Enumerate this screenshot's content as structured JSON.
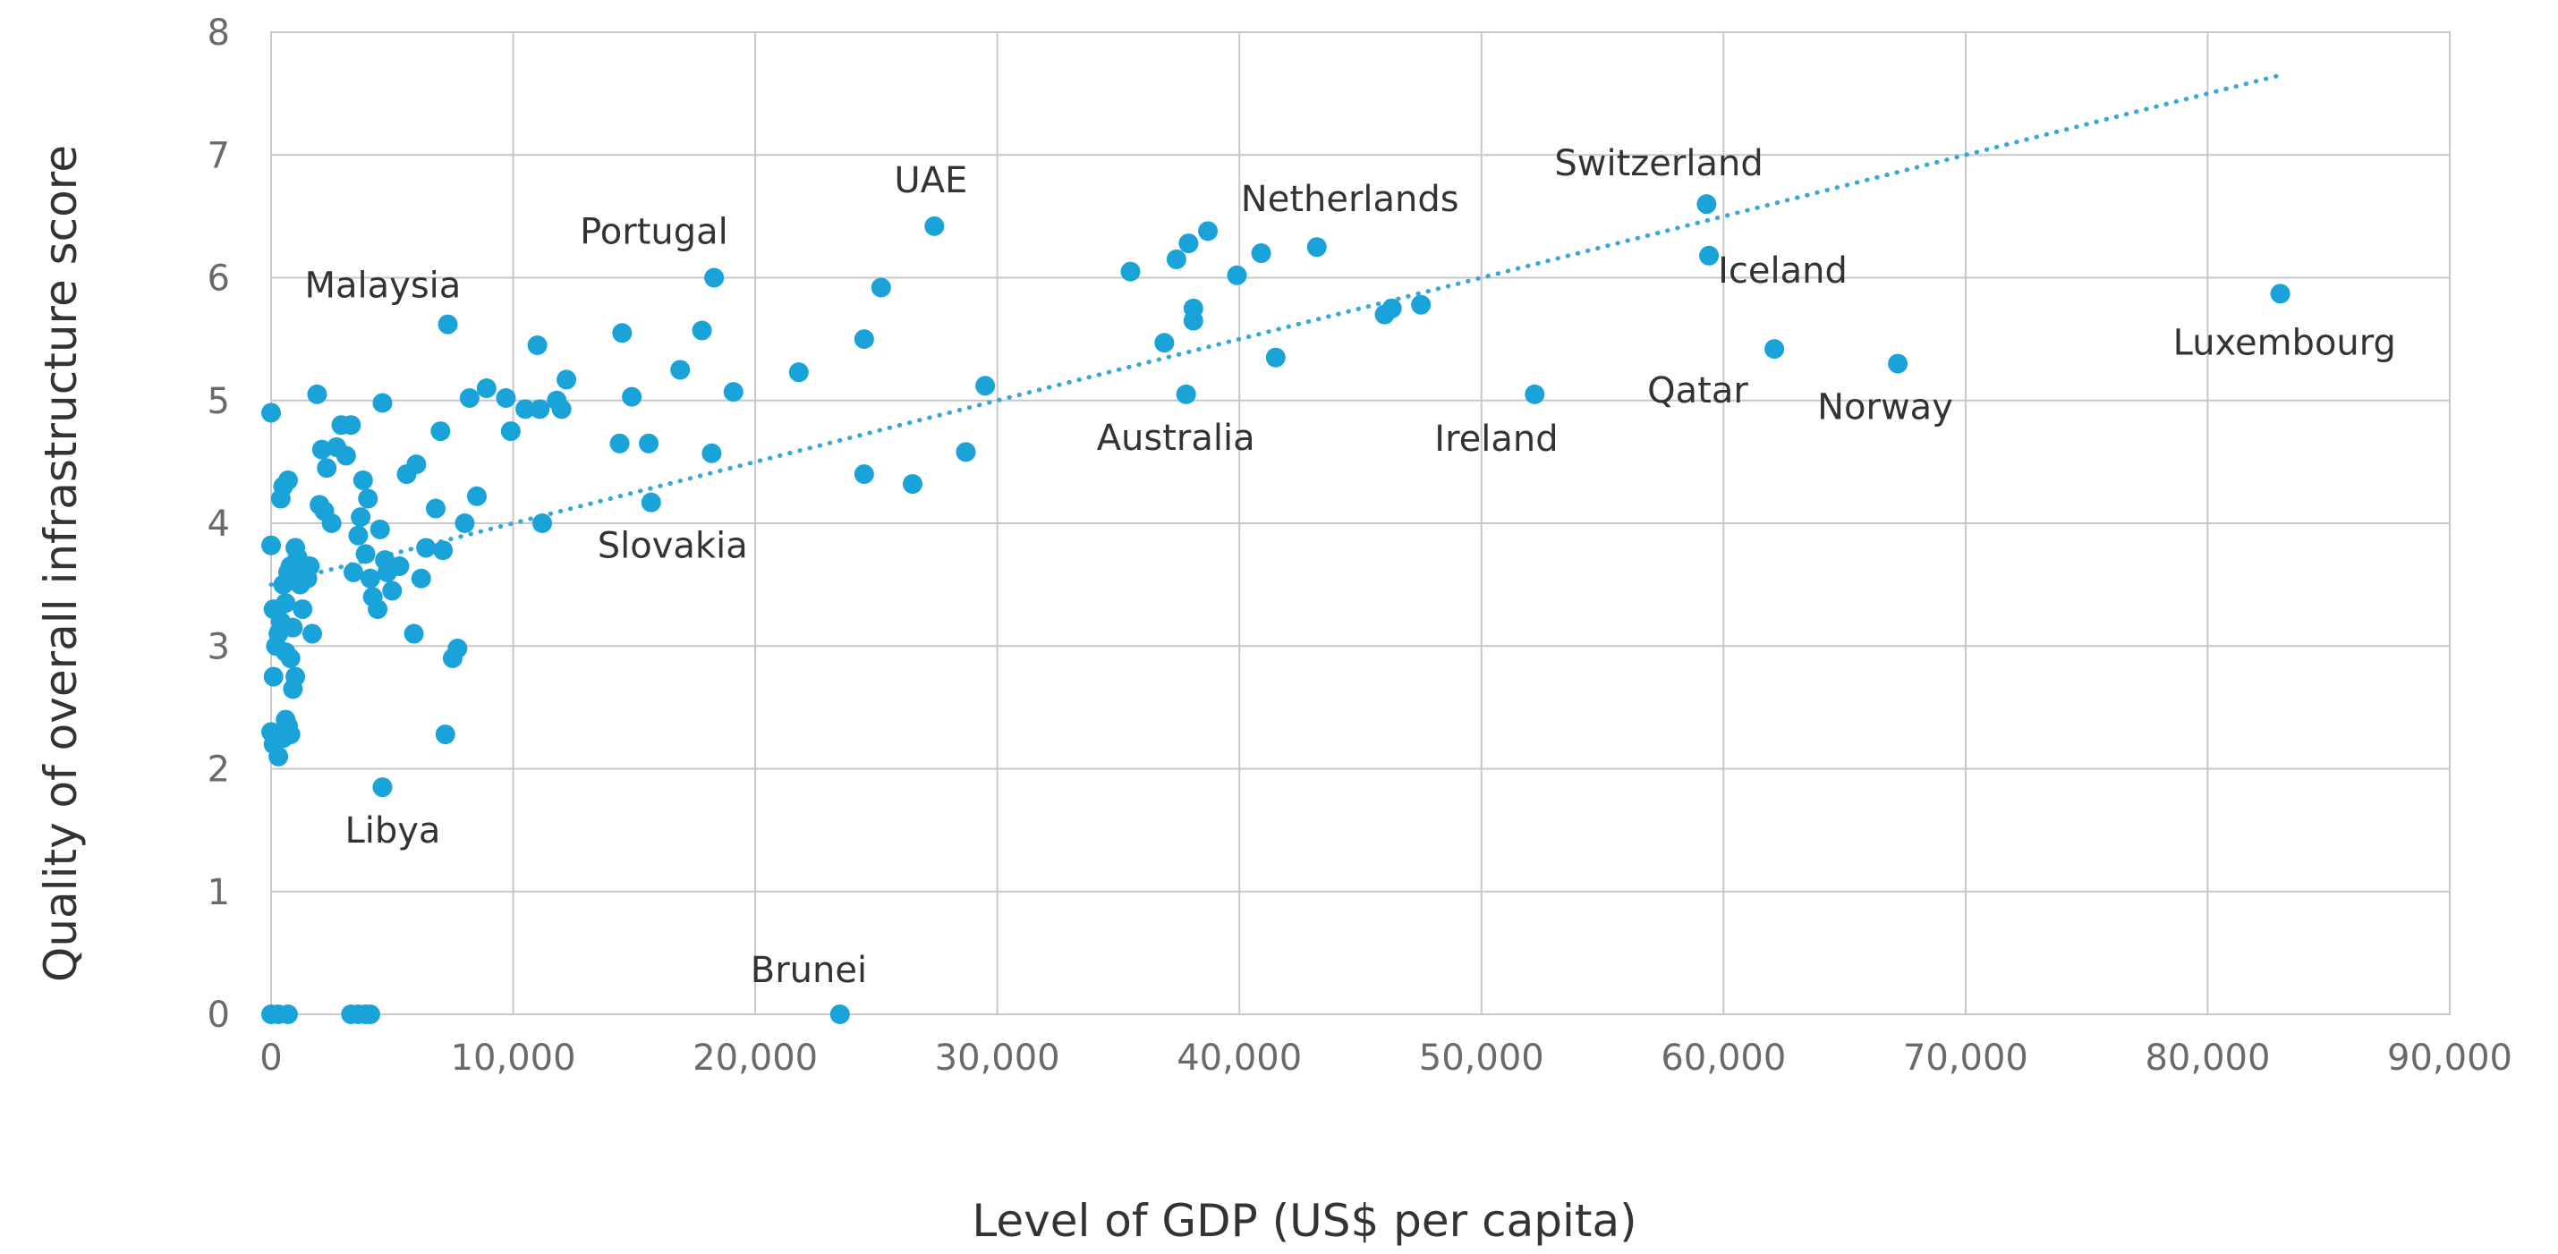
{
  "chart_data": {
    "type": "scatter",
    "title": "",
    "xlabel": "Level of GDP (US$ per capita)",
    "ylabel": "Quality of overall infrastructure score",
    "xlim": [
      0,
      90000
    ],
    "ylim": [
      0,
      8
    ],
    "x_ticks": [
      0,
      10000,
      20000,
      30000,
      40000,
      50000,
      60000,
      70000,
      80000,
      90000
    ],
    "x_tick_labels": [
      "0",
      "10,000",
      "20,000",
      "30,000",
      "40,000",
      "50,000",
      "60,000",
      "70,000",
      "80,000",
      "90,000"
    ],
    "y_ticks": [
      0,
      1,
      2,
      3,
      4,
      5,
      6,
      7,
      8
    ],
    "y_tick_labels": [
      "0",
      "1",
      "2",
      "3",
      "4",
      "5",
      "6",
      "7",
      "8"
    ],
    "grid": true,
    "point_color": "#1aa3d9",
    "trendline": {
      "style": "dotted",
      "color": "#3aa8d6",
      "x": [
        0,
        83000
      ],
      "y": [
        3.5,
        7.65
      ]
    },
    "labeled_points": [
      {
        "label": "Malaysia",
        "x": 7300,
        "y": 5.62
      },
      {
        "label": "Portugal",
        "x": 18300,
        "y": 6.0
      },
      {
        "label": "UAE",
        "x": 27400,
        "y": 6.42
      },
      {
        "label": "Netherlands",
        "x": 43200,
        "y": 6.25
      },
      {
        "label": "Switzerland",
        "x": 59300,
        "y": 6.6
      },
      {
        "label": "Iceland",
        "x": 59400,
        "y": 6.18
      },
      {
        "label": "Luxembourg",
        "x": 83000,
        "y": 5.87
      },
      {
        "label": "Qatar",
        "x": 62100,
        "y": 5.42
      },
      {
        "label": "Norway",
        "x": 67200,
        "y": 5.3
      },
      {
        "label": "Ireland",
        "x": 52200,
        "y": 5.05
      },
      {
        "label": "Australia",
        "x": 37800,
        "y": 5.05
      },
      {
        "label": "Slovakia",
        "x": 15700,
        "y": 4.17
      },
      {
        "label": "Libya",
        "x": 4600,
        "y": 1.85
      },
      {
        "label": "Brunei",
        "x": 23500,
        "y": 0.0
      }
    ],
    "points": [
      {
        "x": 0,
        "y": 4.9
      },
      {
        "x": 0,
        "y": 3.82
      },
      {
        "x": 100,
        "y": 3.3
      },
      {
        "x": 200,
        "y": 3.0
      },
      {
        "x": 100,
        "y": 2.75
      },
      {
        "x": 0,
        "y": 2.3
      },
      {
        "x": 100,
        "y": 2.2
      },
      {
        "x": 300,
        "y": 2.1
      },
      {
        "x": 500,
        "y": 2.25
      },
      {
        "x": 700,
        "y": 2.35
      },
      {
        "x": 800,
        "y": 2.28
      },
      {
        "x": 600,
        "y": 2.4
      },
      {
        "x": 300,
        "y": 3.1
      },
      {
        "x": 400,
        "y": 3.2
      },
      {
        "x": 500,
        "y": 3.5
      },
      {
        "x": 600,
        "y": 3.35
      },
      {
        "x": 700,
        "y": 3.6
      },
      {
        "x": 800,
        "y": 3.65
      },
      {
        "x": 900,
        "y": 3.15
      },
      {
        "x": 1000,
        "y": 3.8
      },
      {
        "x": 1100,
        "y": 3.72
      },
      {
        "x": 1200,
        "y": 3.5
      },
      {
        "x": 1300,
        "y": 3.3
      },
      {
        "x": 1400,
        "y": 3.6
      },
      {
        "x": 1500,
        "y": 3.55
      },
      {
        "x": 1600,
        "y": 3.65
      },
      {
        "x": 900,
        "y": 2.65
      },
      {
        "x": 1000,
        "y": 2.75
      },
      {
        "x": 800,
        "y": 2.9
      },
      {
        "x": 600,
        "y": 2.95
      },
      {
        "x": 400,
        "y": 4.2
      },
      {
        "x": 500,
        "y": 4.3
      },
      {
        "x": 700,
        "y": 4.35
      },
      {
        "x": 1700,
        "y": 3.1
      },
      {
        "x": 2000,
        "y": 4.15
      },
      {
        "x": 2200,
        "y": 4.1
      },
      {
        "x": 1900,
        "y": 5.05
      },
      {
        "x": 2100,
        "y": 4.6
      },
      {
        "x": 2300,
        "y": 4.45
      },
      {
        "x": 2500,
        "y": 4.0
      },
      {
        "x": 2700,
        "y": 4.62
      },
      {
        "x": 2900,
        "y": 4.8
      },
      {
        "x": 3100,
        "y": 4.55
      },
      {
        "x": 3300,
        "y": 4.8
      },
      {
        "x": 3400,
        "y": 3.6
      },
      {
        "x": 3600,
        "y": 3.9
      },
      {
        "x": 3700,
        "y": 4.05
      },
      {
        "x": 3800,
        "y": 4.35
      },
      {
        "x": 3900,
        "y": 3.75
      },
      {
        "x": 4000,
        "y": 4.2
      },
      {
        "x": 4100,
        "y": 3.55
      },
      {
        "x": 4200,
        "y": 3.4
      },
      {
        "x": 4400,
        "y": 3.3
      },
      {
        "x": 4500,
        "y": 3.95
      },
      {
        "x": 4600,
        "y": 4.98
      },
      {
        "x": 4700,
        "y": 3.7
      },
      {
        "x": 4800,
        "y": 3.6
      },
      {
        "x": 5000,
        "y": 3.45
      },
      {
        "x": 5300,
        "y": 3.65
      },
      {
        "x": 5600,
        "y": 4.4
      },
      {
        "x": 5900,
        "y": 3.1
      },
      {
        "x": 6000,
        "y": 4.48
      },
      {
        "x": 6200,
        "y": 3.55
      },
      {
        "x": 6400,
        "y": 3.8
      },
      {
        "x": 6800,
        "y": 4.12
      },
      {
        "x": 7000,
        "y": 4.75
      },
      {
        "x": 7100,
        "y": 3.78
      },
      {
        "x": 7200,
        "y": 2.28
      },
      {
        "x": 7500,
        "y": 2.9
      },
      {
        "x": 7700,
        "y": 2.98
      },
      {
        "x": 8000,
        "y": 4.0
      },
      {
        "x": 8200,
        "y": 5.02
      },
      {
        "x": 8500,
        "y": 4.22
      },
      {
        "x": 8900,
        "y": 5.1
      },
      {
        "x": 9700,
        "y": 5.02
      },
      {
        "x": 9900,
        "y": 4.75
      },
      {
        "x": 10500,
        "y": 4.93
      },
      {
        "x": 11000,
        "y": 5.45
      },
      {
        "x": 11100,
        "y": 4.93
      },
      {
        "x": 11200,
        "y": 4.0
      },
      {
        "x": 11800,
        "y": 5.0
      },
      {
        "x": 12000,
        "y": 4.93
      },
      {
        "x": 12200,
        "y": 5.17
      },
      {
        "x": 14400,
        "y": 4.65
      },
      {
        "x": 14500,
        "y": 5.55
      },
      {
        "x": 14900,
        "y": 5.03
      },
      {
        "x": 15600,
        "y": 4.65
      },
      {
        "x": 16900,
        "y": 5.25
      },
      {
        "x": 17800,
        "y": 5.57
      },
      {
        "x": 18200,
        "y": 4.57
      },
      {
        "x": 19100,
        "y": 5.07
      },
      {
        "x": 21800,
        "y": 5.23
      },
      {
        "x": 24500,
        "y": 5.5
      },
      {
        "x": 24500,
        "y": 4.4
      },
      {
        "x": 25200,
        "y": 5.92
      },
      {
        "x": 26500,
        "y": 4.32
      },
      {
        "x": 28700,
        "y": 4.58
      },
      {
        "x": 29500,
        "y": 5.12
      },
      {
        "x": 35500,
        "y": 6.05
      },
      {
        "x": 36900,
        "y": 5.47
      },
      {
        "x": 37400,
        "y": 6.15
      },
      {
        "x": 37900,
        "y": 6.28
      },
      {
        "x": 38100,
        "y": 5.75
      },
      {
        "x": 38100,
        "y": 5.65
      },
      {
        "x": 38700,
        "y": 6.38
      },
      {
        "x": 39900,
        "y": 6.02
      },
      {
        "x": 40900,
        "y": 6.2
      },
      {
        "x": 41500,
        "y": 5.35
      },
      {
        "x": 46000,
        "y": 5.7
      },
      {
        "x": 46300,
        "y": 5.75
      },
      {
        "x": 47500,
        "y": 5.78
      },
      {
        "x": 0,
        "y": 0.0
      },
      {
        "x": 300,
        "y": 0.0
      },
      {
        "x": 700,
        "y": 0.0
      },
      {
        "x": 3300,
        "y": 0.0
      },
      {
        "x": 3600,
        "y": 0.0
      },
      {
        "x": 3900,
        "y": 0.0
      },
      {
        "x": 4100,
        "y": 0.0
      }
    ]
  }
}
